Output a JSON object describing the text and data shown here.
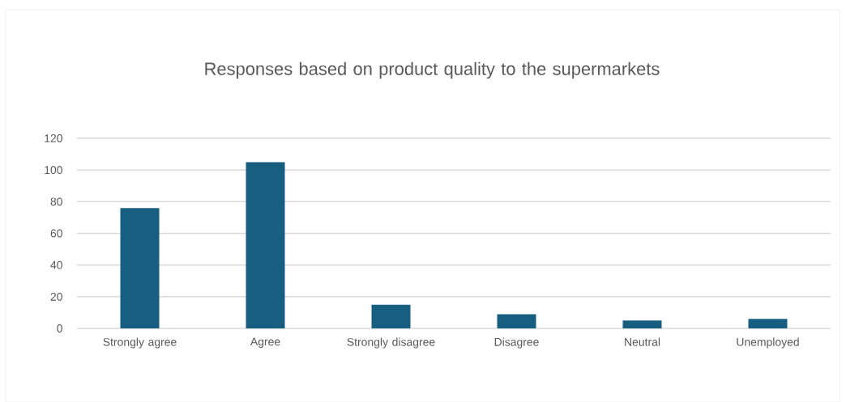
{
  "chart_data": {
    "type": "bar",
    "title": "Responses based on product quality to the supermarkets",
    "categories": [
      "Strongly agree",
      "Agree",
      "Strongly disagree",
      "Disagree",
      "Neutral",
      "Unemployed"
    ],
    "values": [
      76,
      105,
      15,
      9,
      5,
      6
    ],
    "color": "#175e80",
    "ylim": [
      0,
      120
    ],
    "yticks": [
      0,
      20,
      40,
      60,
      80,
      100,
      120
    ],
    "grid": "y"
  }
}
